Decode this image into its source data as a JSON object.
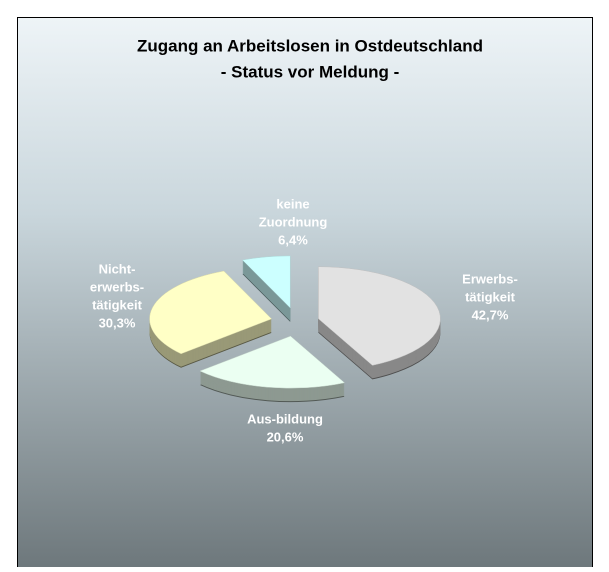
{
  "chart_data": {
    "type": "pie",
    "title": "Zugang an Arbeitslosen in Ostdeutschland",
    "subtitle": "- Status vor Meldung -",
    "categories": [
      [
        "Erwerbs-",
        "tätigkeit"
      ],
      [
        "Aus-bildung"
      ],
      [
        "Nicht-",
        "erwerbs-",
        "tätigkeit"
      ],
      [
        "keine",
        "Zuordnung"
      ]
    ],
    "values": [
      42.7,
      20.6,
      30.3,
      6.4
    ],
    "value_labels": [
      "42,7%",
      "20,6%",
      "30,3%",
      "6,4%"
    ],
    "colors": [
      "#e2e2e2",
      "#ebfff2",
      "#ffffc6",
      "#ccffff"
    ]
  }
}
